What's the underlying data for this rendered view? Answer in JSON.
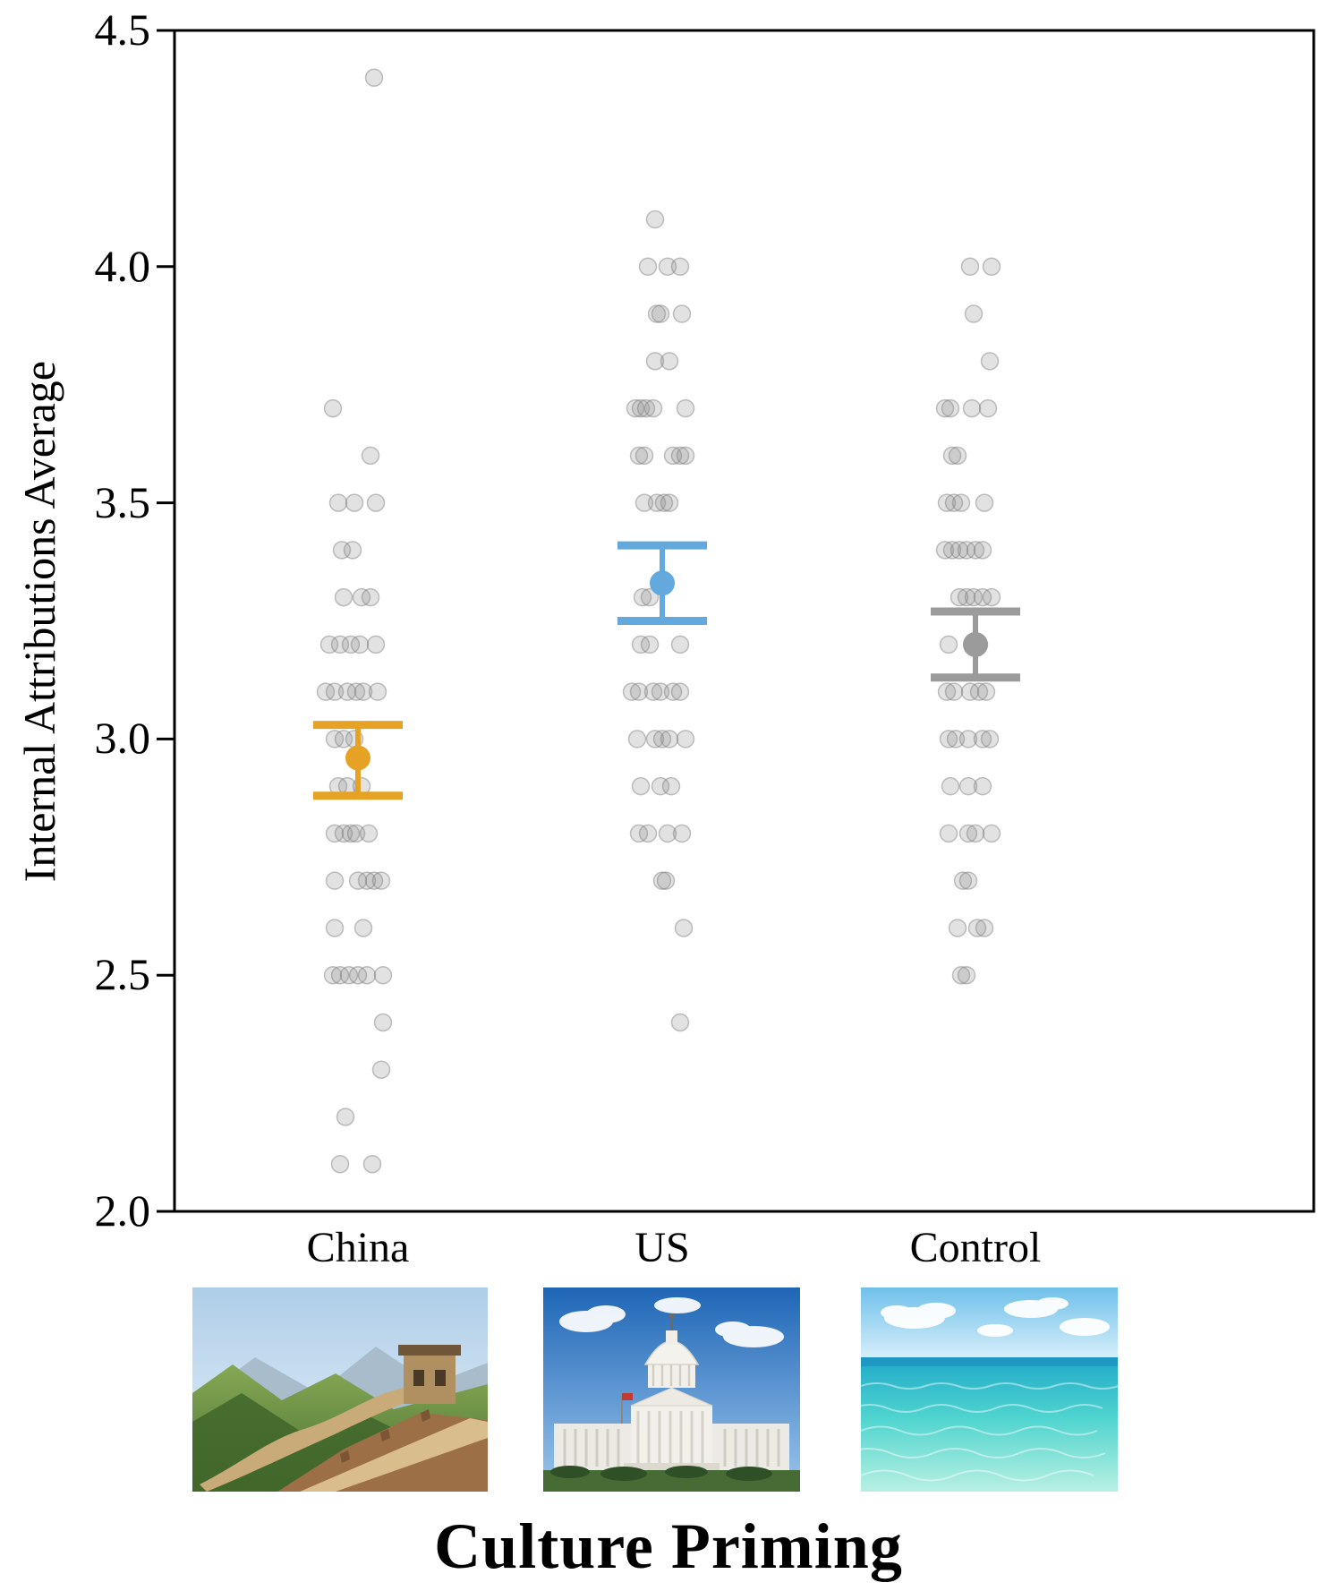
{
  "chart_data": {
    "type": "scatter",
    "subtype": "jittered-strip-plot-with-mean-ci",
    "title": "",
    "xlabel": "Culture Priming",
    "ylabel": "Internal Attributions Average",
    "ylim": [
      2.0,
      4.5
    ],
    "yticks": [
      2.0,
      2.5,
      3.0,
      3.5,
      4.0,
      4.5
    ],
    "ytick_labels": [
      "2.0",
      "2.5",
      "3.0",
      "3.5",
      "4.0",
      "4.5"
    ],
    "grid": false,
    "legend": "none",
    "point_style": {
      "fill": "#8c8c8c",
      "fill_opacity": 0.25,
      "stroke": "#7a7a7a",
      "stroke_opacity": 0.45
    },
    "groups": [
      {
        "label": "China",
        "color": "#E5A225",
        "mean": 2.96,
        "ci": [
          2.88,
          3.03
        ],
        "points": [
          [
            4.4,
            18
          ],
          [
            3.7,
            -28
          ],
          [
            3.6,
            14
          ],
          [
            3.5,
            -22
          ],
          [
            3.5,
            -4
          ],
          [
            3.5,
            20
          ],
          [
            3.4,
            -18
          ],
          [
            3.4,
            -6
          ],
          [
            3.3,
            -16
          ],
          [
            3.3,
            4
          ],
          [
            3.3,
            14
          ],
          [
            3.2,
            -32
          ],
          [
            3.2,
            -20
          ],
          [
            3.2,
            -8
          ],
          [
            3.2,
            2
          ],
          [
            3.2,
            20
          ],
          [
            3.1,
            -36
          ],
          [
            3.1,
            -26
          ],
          [
            3.1,
            -12
          ],
          [
            3.1,
            -2
          ],
          [
            3.1,
            6
          ],
          [
            3.1,
            22
          ],
          [
            3.0,
            -26
          ],
          [
            3.0,
            -16
          ],
          [
            3.0,
            -4
          ],
          [
            2.9,
            -22
          ],
          [
            2.9,
            -12
          ],
          [
            2.9,
            4
          ],
          [
            2.8,
            -26
          ],
          [
            2.8,
            -16
          ],
          [
            2.8,
            -8
          ],
          [
            2.8,
            -2
          ],
          [
            2.8,
            12
          ],
          [
            2.7,
            -26
          ],
          [
            2.7,
            0
          ],
          [
            2.7,
            10
          ],
          [
            2.7,
            18
          ],
          [
            2.7,
            26
          ],
          [
            2.6,
            -26
          ],
          [
            2.6,
            6
          ],
          [
            2.5,
            -28
          ],
          [
            2.5,
            -20
          ],
          [
            2.5,
            -10
          ],
          [
            2.5,
            0
          ],
          [
            2.5,
            10
          ],
          [
            2.5,
            28
          ],
          [
            2.4,
            28
          ],
          [
            2.3,
            26
          ],
          [
            2.2,
            -14
          ],
          [
            2.1,
            -20
          ],
          [
            2.1,
            16
          ]
        ]
      },
      {
        "label": "US",
        "color": "#64A9DE",
        "mean": 3.33,
        "ci": [
          3.25,
          3.41
        ],
        "points": [
          [
            4.1,
            -8
          ],
          [
            4.0,
            -16
          ],
          [
            4.0,
            6
          ],
          [
            4.0,
            20
          ],
          [
            3.9,
            -6
          ],
          [
            3.9,
            -2
          ],
          [
            3.9,
            22
          ],
          [
            3.8,
            -8
          ],
          [
            3.8,
            8
          ],
          [
            3.7,
            -30
          ],
          [
            3.7,
            -24
          ],
          [
            3.7,
            -18
          ],
          [
            3.7,
            -10
          ],
          [
            3.7,
            26
          ],
          [
            3.6,
            -26
          ],
          [
            3.6,
            -20
          ],
          [
            3.6,
            12
          ],
          [
            3.6,
            20
          ],
          [
            3.6,
            26
          ],
          [
            3.5,
            -20
          ],
          [
            3.5,
            -6
          ],
          [
            3.5,
            2
          ],
          [
            3.5,
            8
          ],
          [
            3.3,
            -22
          ],
          [
            3.3,
            -14
          ],
          [
            3.2,
            -24
          ],
          [
            3.2,
            -14
          ],
          [
            3.2,
            20
          ],
          [
            3.1,
            -34
          ],
          [
            3.1,
            -26
          ],
          [
            3.1,
            -10
          ],
          [
            3.1,
            -2
          ],
          [
            3.1,
            12
          ],
          [
            3.1,
            20
          ],
          [
            3.0,
            -28
          ],
          [
            3.0,
            -8
          ],
          [
            3.0,
            0
          ],
          [
            3.0,
            8
          ],
          [
            3.0,
            26
          ],
          [
            2.9,
            -24
          ],
          [
            2.9,
            -2
          ],
          [
            2.9,
            10
          ],
          [
            2.8,
            -26
          ],
          [
            2.8,
            -16
          ],
          [
            2.8,
            6
          ],
          [
            2.8,
            22
          ],
          [
            2.7,
            0
          ],
          [
            2.7,
            4
          ],
          [
            2.6,
            24
          ],
          [
            2.4,
            20
          ]
        ]
      },
      {
        "label": "Control",
        "color": "#9B9B9B",
        "mean": 3.2,
        "ci": [
          3.13,
          3.27
        ],
        "points": [
          [
            4.0,
            -6
          ],
          [
            4.0,
            18
          ],
          [
            3.9,
            -2
          ],
          [
            3.8,
            16
          ],
          [
            3.7,
            -34
          ],
          [
            3.7,
            -28
          ],
          [
            3.7,
            -4
          ],
          [
            3.7,
            14
          ],
          [
            3.6,
            -26
          ],
          [
            3.6,
            -20
          ],
          [
            3.5,
            -32
          ],
          [
            3.5,
            -24
          ],
          [
            3.5,
            -16
          ],
          [
            3.5,
            10
          ],
          [
            3.4,
            -34
          ],
          [
            3.4,
            -26
          ],
          [
            3.4,
            -18
          ],
          [
            3.4,
            -10
          ],
          [
            3.4,
            0
          ],
          [
            3.4,
            8
          ],
          [
            3.3,
            -18
          ],
          [
            3.3,
            -10
          ],
          [
            3.3,
            -2
          ],
          [
            3.3,
            8
          ],
          [
            3.3,
            18
          ],
          [
            3.2,
            -30
          ],
          [
            3.2,
            4
          ],
          [
            3.1,
            -32
          ],
          [
            3.1,
            -24
          ],
          [
            3.1,
            -6
          ],
          [
            3.1,
            4
          ],
          [
            3.1,
            12
          ],
          [
            3.0,
            -30
          ],
          [
            3.0,
            -22
          ],
          [
            3.0,
            -8
          ],
          [
            3.0,
            8
          ],
          [
            3.0,
            16
          ],
          [
            2.9,
            -28
          ],
          [
            2.9,
            -8
          ],
          [
            2.9,
            8
          ],
          [
            2.8,
            -30
          ],
          [
            2.8,
            -8
          ],
          [
            2.8,
            0
          ],
          [
            2.8,
            18
          ],
          [
            2.7,
            -14
          ],
          [
            2.7,
            -8
          ],
          [
            2.6,
            -20
          ],
          [
            2.6,
            2
          ],
          [
            2.6,
            10
          ],
          [
            2.5,
            -16
          ],
          [
            2.5,
            -10
          ]
        ]
      }
    ]
  },
  "prime_images": [
    "great-wall-of-china",
    "us-capitol-building",
    "tropical-ocean-water"
  ]
}
